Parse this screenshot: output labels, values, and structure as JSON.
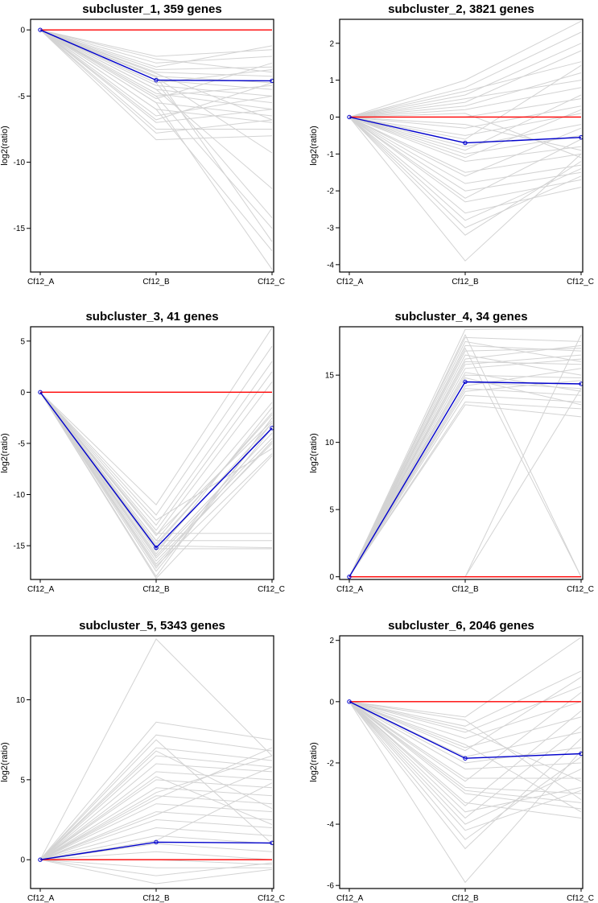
{
  "chart_data": [
    {
      "type": "line",
      "title": "subcluster_1, 359 genes",
      "categories": [
        "Cf12_A",
        "Cf12_B",
        "Cf12_C"
      ],
      "xlabel": "",
      "ylabel": "log2(ratio)",
      "ylim": [
        -18.3,
        0.8
      ],
      "yticks": [
        0,
        -5,
        -10,
        -15
      ],
      "reference_line": 0,
      "centroid": [
        0,
        -3.8,
        -3.85
      ],
      "gene_count": 359,
      "background_profiles": [
        [
          0,
          -2.0,
          -1.5
        ],
        [
          0,
          -2.5,
          -2.0
        ],
        [
          0,
          -3.0,
          -2.8
        ],
        [
          0,
          -3.2,
          -3.5
        ],
        [
          0,
          -3.5,
          -4.0
        ],
        [
          0,
          -3.8,
          -4.5
        ],
        [
          0,
          -4.0,
          -3.0
        ],
        [
          0,
          -4.2,
          -5.0
        ],
        [
          0,
          -4.5,
          -5.5
        ],
        [
          0,
          -4.8,
          -6.0
        ],
        [
          0,
          -5.0,
          -4.2
        ],
        [
          0,
          -5.5,
          -6.5
        ],
        [
          0,
          -6.0,
          -7.0
        ],
        [
          0,
          -6.5,
          -5.0
        ],
        [
          0,
          -7.0,
          -6.0
        ],
        [
          0,
          -7.5,
          -7.5
        ],
        [
          0,
          -8.3,
          -8.0
        ],
        [
          0,
          -3.6,
          -9.3
        ],
        [
          0,
          -4.0,
          -14.2
        ],
        [
          0,
          -5.0,
          -15.0
        ],
        [
          0,
          -3.5,
          -16.0
        ],
        [
          0,
          -6.0,
          -16.7
        ],
        [
          0,
          -5.5,
          -18.1
        ],
        [
          0,
          -4.5,
          -12.0
        ],
        [
          0,
          -2.2,
          -3.2
        ],
        [
          0,
          -2.8,
          -1.2
        ],
        [
          0,
          -5.2,
          -2.5
        ],
        [
          0,
          -3.3,
          -6.8
        ],
        [
          0,
          -6.8,
          -4.0
        ],
        [
          0,
          -7.8,
          -6.8
        ]
      ]
    },
    {
      "type": "line",
      "title": "subcluster_2, 3821 genes",
      "categories": [
        "Cf12_A",
        "Cf12_B",
        "Cf12_C"
      ],
      "xlabel": "",
      "ylabel": "log2(ratio)",
      "ylim": [
        -4.2,
        2.65
      ],
      "yticks": [
        2,
        1,
        0,
        -1,
        -2,
        -3,
        -4
      ],
      "reference_line": 0,
      "centroid": [
        0,
        -0.7,
        -0.55
      ],
      "gene_count": 3821,
      "background_profiles": [
        [
          0,
          1.0,
          2.6
        ],
        [
          0,
          0.8,
          2.3
        ],
        [
          0,
          0.6,
          2.0
        ],
        [
          0,
          0.4,
          1.8
        ],
        [
          0,
          0.7,
          1.5
        ],
        [
          0,
          0.3,
          1.2
        ],
        [
          0,
          0.5,
          1.0
        ],
        [
          0,
          0.2,
          0.8
        ],
        [
          0,
          0.0,
          0.5
        ],
        [
          0,
          -0.3,
          0.3
        ],
        [
          0,
          -0.5,
          0.1
        ],
        [
          0,
          -0.8,
          -0.2
        ],
        [
          0,
          -1.0,
          -0.5
        ],
        [
          0,
          -1.2,
          -0.8
        ],
        [
          0,
          -1.5,
          -1.0
        ],
        [
          0,
          -1.8,
          -1.3
        ],
        [
          0,
          -2.0,
          -1.5
        ],
        [
          0,
          -2.3,
          -1.7
        ],
        [
          0,
          -2.6,
          -1.9
        ],
        [
          0,
          -3.0,
          -1.6
        ],
        [
          0,
          -3.2,
          -1.2
        ],
        [
          0,
          -3.9,
          -1.0
        ],
        [
          0,
          -2.8,
          -1.4
        ],
        [
          0,
          -1.6,
          -0.3
        ],
        [
          0,
          -0.9,
          0.6
        ],
        [
          0,
          -0.2,
          -0.9
        ],
        [
          0,
          -1.1,
          0.2
        ],
        [
          0,
          0.1,
          -1.1
        ],
        [
          0,
          -2.2,
          -0.6
        ],
        [
          0,
          -0.6,
          1.4
        ]
      ]
    },
    {
      "type": "line",
      "title": "subcluster_3, 41 genes",
      "categories": [
        "Cf12_A",
        "Cf12_B",
        "Cf12_C"
      ],
      "xlabel": "",
      "ylabel": "log2(ratio)",
      "ylim": [
        -18.3,
        6.4
      ],
      "yticks": [
        5,
        0,
        -5,
        -10,
        -15
      ],
      "reference_line": 0,
      "centroid": [
        0,
        -15.2,
        -3.5
      ],
      "gene_count": 41,
      "background_profiles": [
        [
          0,
          -11.0,
          6.3
        ],
        [
          0,
          -12.0,
          4.5
        ],
        [
          0,
          -13.0,
          3.0
        ],
        [
          0,
          -14.0,
          1.0
        ],
        [
          0,
          -14.5,
          -1.0
        ],
        [
          0,
          -15.0,
          -2.0
        ],
        [
          0,
          -15.5,
          -3.0
        ],
        [
          0,
          -16.0,
          -4.0
        ],
        [
          0,
          -16.5,
          -5.0
        ],
        [
          0,
          -17.0,
          -6.0
        ],
        [
          0,
          -17.5,
          -3.5
        ],
        [
          0,
          -18.0,
          -2.5
        ],
        [
          0,
          -13.8,
          -13.8
        ],
        [
          0,
          -14.5,
          -14.5
        ],
        [
          0,
          -15.0,
          -15.2
        ],
        [
          0,
          -14.0,
          -2.8
        ],
        [
          0,
          -16.2,
          -4.5
        ],
        [
          0,
          -15.8,
          -1.5
        ],
        [
          0,
          -12.5,
          -5.5
        ],
        [
          0,
          -17.2,
          -3.0
        ],
        [
          0,
          -13.5,
          2.0
        ],
        [
          0,
          -16.8,
          -4.8
        ],
        [
          0,
          -14.8,
          -2.2
        ],
        [
          0,
          -15.3,
          -15.3
        ],
        [
          0,
          -18.2,
          -6.2
        ]
      ]
    },
    {
      "type": "line",
      "title": "subcluster_4, 34 genes",
      "categories": [
        "Cf12_A",
        "Cf12_B",
        "Cf12_C"
      ],
      "xlabel": "",
      "ylabel": "log2(ratio)",
      "ylim": [
        -0.2,
        18.6
      ],
      "yticks": [
        0,
        5,
        10,
        15
      ],
      "reference_line": 0,
      "centroid": [
        0,
        14.5,
        14.35
      ],
      "gene_count": 34,
      "background_profiles": [
        [
          0,
          18.4,
          18.5
        ],
        [
          0,
          17.8,
          17.5
        ],
        [
          0,
          17.2,
          16.8
        ],
        [
          0,
          16.8,
          17.0
        ],
        [
          0,
          16.0,
          15.8
        ],
        [
          0,
          15.5,
          16.2
        ],
        [
          0,
          15.0,
          14.8
        ],
        [
          0,
          14.5,
          14.0
        ],
        [
          0,
          14.0,
          13.5
        ],
        [
          0,
          13.5,
          13.0
        ],
        [
          0,
          13.0,
          12.5
        ],
        [
          0,
          12.8,
          11.9
        ],
        [
          0,
          18.0,
          0.0
        ],
        [
          0,
          17.0,
          0.0
        ],
        [
          0,
          0.0,
          14.0
        ],
        [
          0,
          0.0,
          18.0
        ],
        [
          0,
          16.5,
          15.0
        ],
        [
          0,
          15.8,
          16.5
        ],
        [
          0,
          14.2,
          15.5
        ],
        [
          0,
          13.8,
          14.6
        ],
        [
          0,
          17.5,
          16.0
        ],
        [
          0,
          15.2,
          13.8
        ],
        [
          0,
          16.2,
          17.2
        ],
        [
          0,
          14.8,
          12.8
        ]
      ]
    },
    {
      "type": "line",
      "title": "subcluster_5, 5343 genes",
      "categories": [
        "Cf12_A",
        "Cf12_B",
        "Cf12_C"
      ],
      "xlabel": "",
      "ylabel": "log2(ratio)",
      "ylim": [
        -1.8,
        14.0
      ],
      "yticks": [
        0,
        5,
        10
      ],
      "reference_line": 0,
      "centroid": [
        0,
        1.1,
        1.05
      ],
      "gene_count": 5343,
      "background_profiles": [
        [
          0,
          13.8,
          6.5
        ],
        [
          0,
          8.6,
          7.5
        ],
        [
          0,
          7.8,
          6.8
        ],
        [
          0,
          7.0,
          6.2
        ],
        [
          0,
          6.5,
          5.8
        ],
        [
          0,
          6.0,
          5.5
        ],
        [
          0,
          5.5,
          5.0
        ],
        [
          0,
          5.0,
          4.5
        ],
        [
          0,
          4.5,
          4.0
        ],
        [
          0,
          4.0,
          3.5
        ],
        [
          0,
          3.5,
          3.0
        ],
        [
          0,
          3.0,
          2.5
        ],
        [
          0,
          2.5,
          2.0
        ],
        [
          0,
          2.0,
          1.5
        ],
        [
          0,
          1.5,
          1.0
        ],
        [
          0,
          1.0,
          0.5
        ],
        [
          0,
          0.5,
          0.0
        ],
        [
          0,
          0.0,
          -0.3
        ],
        [
          0,
          -0.5,
          -0.5
        ],
        [
          0,
          -1.0,
          -0.2
        ],
        [
          0,
          -1.5,
          -0.6
        ],
        [
          0,
          7.5,
          1.0
        ],
        [
          0,
          6.8,
          3.2
        ],
        [
          0,
          4.2,
          6.5
        ],
        [
          0,
          2.8,
          5.8
        ],
        [
          0,
          5.2,
          2.2
        ],
        [
          0,
          3.8,
          7.0
        ],
        [
          0,
          1.2,
          4.8
        ]
      ]
    },
    {
      "type": "line",
      "title": "subcluster_6, 2046 genes",
      "categories": [
        "Cf12_A",
        "Cf12_B",
        "Cf12_C"
      ],
      "xlabel": "",
      "ylabel": "log2(ratio)",
      "ylim": [
        -6.1,
        2.15
      ],
      "yticks": [
        2,
        0,
        -2,
        -4,
        -6
      ],
      "reference_line": 0,
      "centroid": [
        0,
        -1.85,
        -1.7
      ],
      "gene_count": 2046,
      "background_profiles": [
        [
          0,
          -0.5,
          2.1
        ],
        [
          0,
          -0.8,
          1.0
        ],
        [
          0,
          -1.0,
          0.5
        ],
        [
          0,
          -1.2,
          0.0
        ],
        [
          0,
          -1.5,
          -0.5
        ],
        [
          0,
          -1.8,
          -1.0
        ],
        [
          0,
          -2.0,
          -1.5
        ],
        [
          0,
          -2.2,
          -2.0
        ],
        [
          0,
          -2.5,
          -2.5
        ],
        [
          0,
          -2.8,
          -3.0
        ],
        [
          0,
          -3.0,
          -3.5
        ],
        [
          0,
          -3.3,
          -3.8
        ],
        [
          0,
          -3.6,
          -2.8
        ],
        [
          0,
          -4.0,
          -2.2
        ],
        [
          0,
          -4.5,
          -1.8
        ],
        [
          0,
          -4.8,
          -1.2
        ],
        [
          0,
          -5.9,
          -1.6
        ],
        [
          0,
          -3.8,
          -0.8
        ],
        [
          0,
          -0.6,
          -3.2
        ],
        [
          0,
          -1.4,
          -3.6
        ],
        [
          0,
          -2.6,
          0.3
        ],
        [
          0,
          -0.9,
          -2.6
        ],
        [
          0,
          -3.4,
          -0.3
        ],
        [
          0,
          -4.2,
          -2.9
        ],
        [
          0,
          -1.6,
          0.8
        ],
        [
          0,
          -2.9,
          -3.3
        ]
      ]
    }
  ],
  "colors": {
    "background_lines": "#d3d3d3",
    "reference_line": "#ff0000",
    "centroid_line": "#0000cc",
    "axis": "#000000"
  }
}
